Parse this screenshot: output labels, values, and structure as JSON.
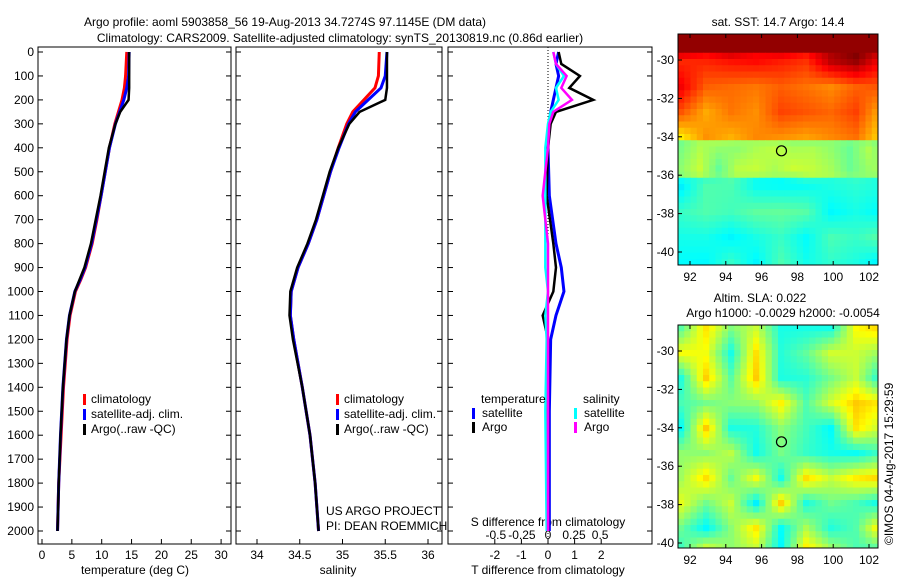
{
  "title_line1": "Argo profile: aoml 5903858_56 19-Aug-2013 34.7274S 97.1145E (DM data)",
  "title_line2": "Climatology: CARS2009. Satellite-adjusted climatology: synTS_20130819.nc (0.86d earlier)",
  "credit": "©IMOS 04-Aug-2017 15:29:59",
  "colors": {
    "climatology": "#ff0000",
    "satellite": "#0000ff",
    "argo": "#000000",
    "sal_satellite": "#00ffff",
    "sal_argo": "#ff00ff"
  },
  "chart_data": [
    {
      "type": "line",
      "name": "temperature",
      "xlabel": "temperature (deg C)",
      "ylim": [
        0,
        2050
      ],
      "xlim": [
        -1,
        31.5
      ],
      "xticks": [
        "0",
        "5",
        "10",
        "15",
        "20",
        "25",
        "30"
      ],
      "yticks": [
        "0",
        "100",
        "200",
        "300",
        "400",
        "500",
        "600",
        "700",
        "800",
        "900",
        "1000",
        "1100",
        "1200",
        "1300",
        "1400",
        "1500",
        "1600",
        "1700",
        "1800",
        "1900",
        "2000"
      ],
      "depth": [
        0,
        100,
        150,
        200,
        250,
        300,
        400,
        500,
        600,
        700,
        800,
        900,
        950,
        1000,
        1100,
        1200,
        1300,
        1400,
        1500,
        1600,
        1800,
        2000
      ],
      "series": [
        {
          "name": "climatology",
          "values": [
            14.2,
            14.0,
            13.8,
            13.4,
            12.8,
            12.2,
            11.3,
            10.6,
            9.9,
            9.2,
            8.4,
            7.3,
            6.5,
            5.6,
            4.7,
            4.2,
            3.9,
            3.6,
            3.4,
            3.2,
            2.8,
            2.6
          ]
        },
        {
          "name": "satellite-adj. clim.",
          "values": [
            14.6,
            14.5,
            14.2,
            13.7,
            13.0,
            12.3,
            11.3,
            10.6,
            9.9,
            9.1,
            8.3,
            7.2,
            6.4,
            5.5,
            4.6,
            4.1,
            3.8,
            3.5,
            3.3,
            3.1,
            2.8,
            2.6
          ]
        },
        {
          "name": "Argo(..raw -QC)",
          "values": [
            14.6,
            14.6,
            14.6,
            14.5,
            13.1,
            12.3,
            11.2,
            10.5,
            9.8,
            9.0,
            8.2,
            7.1,
            6.3,
            5.5,
            4.6,
            4.1,
            3.8,
            3.5,
            3.3,
            3.1,
            2.8,
            2.6
          ]
        }
      ],
      "legend": [
        "climatology",
        "satellite-adj. clim.",
        "Argo(..raw -QC)"
      ]
    },
    {
      "type": "line",
      "name": "salinity",
      "xlabel": "salinity",
      "xlim": [
        33.77,
        36.08
      ],
      "xticks": [
        "34",
        "34.5",
        "35",
        "35.5",
        "36"
      ],
      "depth": [
        0,
        100,
        150,
        200,
        250,
        300,
        400,
        500,
        600,
        700,
        800,
        900,
        1000,
        1100,
        1200,
        1400,
        1600,
        1800,
        2000
      ],
      "series": [
        {
          "name": "climatology",
          "values": [
            35.43,
            35.42,
            35.38,
            35.25,
            35.12,
            35.05,
            34.95,
            34.86,
            34.78,
            34.7,
            34.6,
            34.48,
            34.4,
            34.39,
            34.43,
            34.53,
            34.62,
            34.68,
            34.72
          ]
        },
        {
          "name": "satellite-adj. clim.",
          "values": [
            35.52,
            35.5,
            35.45,
            35.3,
            35.15,
            35.07,
            34.96,
            34.86,
            34.78,
            34.7,
            34.6,
            34.48,
            34.4,
            34.39,
            34.43,
            34.53,
            34.62,
            34.68,
            34.72
          ]
        },
        {
          "name": "Argo(..raw -QC)",
          "values": [
            35.52,
            35.52,
            35.52,
            35.5,
            35.2,
            35.08,
            34.95,
            34.85,
            34.77,
            34.69,
            34.59,
            34.47,
            34.39,
            34.38,
            34.42,
            34.53,
            34.62,
            34.68,
            34.72
          ]
        }
      ],
      "legend": [
        "climatology",
        "satellite-adj. clim.",
        "Argo(..raw -QC)"
      ],
      "annotation": [
        "US ARGO PROJECT",
        "PI: DEAN ROEMMICH"
      ]
    },
    {
      "type": "line",
      "name": "difference",
      "xlabel": "T difference from climatology",
      "xlabel_top": "S difference from climatology",
      "xlim": [
        -3,
        3
      ],
      "xticks": [
        "-2",
        "-1",
        "0",
        "1",
        "2"
      ],
      "xticks_top": [
        "-0.5",
        "-0.25",
        "0",
        "0.25",
        "0.5"
      ],
      "depth": [
        0,
        50,
        100,
        150,
        200,
        250,
        300,
        400,
        600,
        800,
        900,
        1000,
        1100,
        1200,
        1500,
        2000
      ],
      "series": [
        {
          "name": "temperature satellite",
          "values": [
            0.4,
            0.3,
            0.4,
            0.3,
            0.2,
            0.1,
            0.05,
            0,
            0.05,
            0.3,
            0.5,
            0.6,
            0.3,
            0.1,
            0.05,
            0.05
          ]
        },
        {
          "name": "temperature Argo",
          "values": [
            0.4,
            0.5,
            1.2,
            0.8,
            1.7,
            0.3,
            0.1,
            0,
            -0.05,
            0.2,
            0.3,
            0.2,
            -0.2,
            0,
            0,
            0
          ]
        },
        {
          "name": "salinity satellite",
          "values": [
            0.2,
            0.3,
            0.6,
            0.3,
            0.4,
            0.1,
            0,
            -0.1,
            -0.1,
            -0.1,
            -0.1,
            0,
            -0.1,
            -0.05,
            -0.1,
            -0.05
          ]
        },
        {
          "name": "salinity Argo",
          "values": [
            0.2,
            0.3,
            0.7,
            0.5,
            0.9,
            0.2,
            0.05,
            0,
            -0.2,
            0,
            0,
            0,
            0,
            0,
            0,
            0
          ]
        }
      ],
      "legend": {
        "temperature_title": "temperature",
        "salinity_title": "salinity",
        "t_sat": "satellite",
        "t_argo": "Argo",
        "s_sat": "satellite",
        "s_argo": "Argo"
      }
    },
    {
      "type": "heatmap",
      "name": "sst-map",
      "title": "sat. SST: 14.7 Argo: 14.4",
      "xticks": [
        "92",
        "94",
        "96",
        "98",
        "100",
        "102"
      ],
      "yticks": [
        "-30",
        "-32",
        "-34",
        "-36",
        "-38",
        "-40"
      ],
      "xlim": [
        90.7,
        103.6
      ],
      "ylim": [
        -40.6,
        -28.7
      ],
      "marker": {
        "lon": 97.11,
        "lat": -34.73
      }
    },
    {
      "type": "heatmap",
      "name": "sla-map",
      "title": "Altim. SLA: 0.022",
      "subtitle": "Argo h1000: -0.0029 h2000: -0.0054",
      "xticks": [
        "92",
        "94",
        "96",
        "98",
        "100",
        "102"
      ],
      "yticks": [
        "-30",
        "-32",
        "-34",
        "-36",
        "-38",
        "-40"
      ],
      "xlim": [
        90.7,
        103.6
      ],
      "ylim": [
        -40.6,
        -28.7
      ],
      "marker": {
        "lon": 97.11,
        "lat": -34.73
      }
    }
  ]
}
